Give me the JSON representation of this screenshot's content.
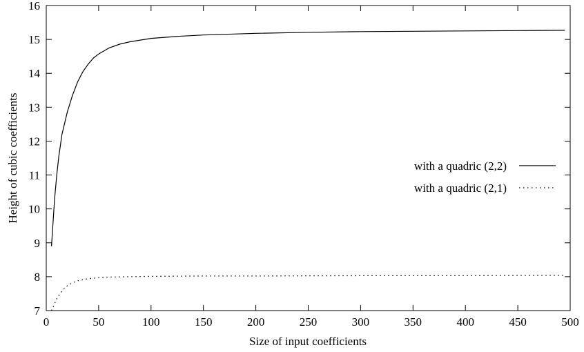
{
  "chart_data": {
    "type": "line",
    "title": "",
    "xlabel": "Size of input coefficients",
    "ylabel": "Height of cubic coefficients",
    "xlim": [
      0,
      500
    ],
    "ylim": [
      7,
      16
    ],
    "xticks": [
      0,
      50,
      100,
      150,
      200,
      250,
      300,
      350,
      400,
      450,
      500
    ],
    "yticks": [
      7,
      8,
      9,
      10,
      11,
      12,
      13,
      14,
      15,
      16
    ],
    "grid": false,
    "legend_position": "right",
    "series": [
      {
        "name": "with a quadric (2,2)",
        "style": "solid",
        "x": [
          5,
          8,
          10,
          12,
          15,
          20,
          25,
          30,
          35,
          40,
          45,
          50,
          60,
          70,
          80,
          100,
          125,
          150,
          200,
          250,
          300,
          350,
          400,
          450,
          495
        ],
        "y": [
          8.9,
          10.3,
          11.0,
          11.55,
          12.2,
          12.85,
          13.35,
          13.75,
          14.05,
          14.27,
          14.45,
          14.57,
          14.75,
          14.86,
          14.93,
          15.03,
          15.09,
          15.13,
          15.18,
          15.21,
          15.23,
          15.24,
          15.25,
          15.26,
          15.27
        ]
      },
      {
        "name": "with a quadric (2,1)",
        "style": "dotted",
        "x": [
          5,
          10,
          15,
          20,
          25,
          30,
          40,
          50,
          60,
          80,
          100,
          150,
          200,
          300,
          400,
          495
        ],
        "y": [
          7.0,
          7.35,
          7.58,
          7.73,
          7.82,
          7.88,
          7.94,
          7.97,
          7.99,
          8.0,
          8.01,
          8.02,
          8.02,
          8.03,
          8.03,
          8.04
        ]
      }
    ]
  }
}
